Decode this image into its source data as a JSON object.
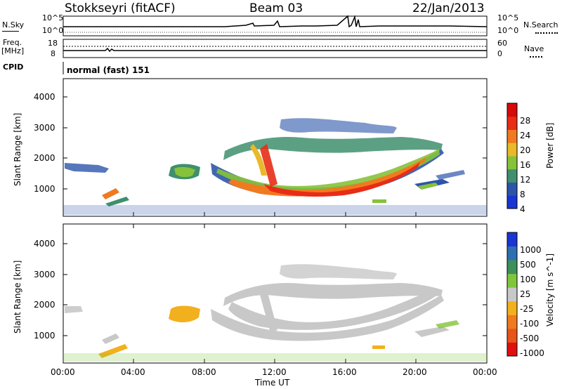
{
  "header": {
    "station": "Stokkseyri (fitACF)",
    "beam": "Beam 03",
    "date": "22/Jan/2013"
  },
  "noise_panel": {
    "left_label": "N.Sky",
    "right_label": "N.Search",
    "y_ticks": [
      "10^5",
      "10^0"
    ]
  },
  "freq_panel": {
    "left_label_1": "Freq.",
    "left_label_2": "[MHz]",
    "y_ticks": [
      "18",
      "8"
    ],
    "right_ticks": [
      "60",
      "0"
    ],
    "right_label": "Nave"
  },
  "cpid_panel": {
    "label": "CPID",
    "mode": "normal (fast) 151"
  },
  "chart_data": [
    {
      "type": "heatmap",
      "title": "",
      "ylabel": "Slant Range [km]",
      "xlabel": "",
      "ylim": [
        180,
        4500
      ],
      "y_ticks": [
        "1000",
        "2000",
        "3000",
        "4000"
      ],
      "colorbar": {
        "label": "Power [dB]",
        "ticks": [
          "4",
          "8",
          "12",
          "16",
          "20",
          "24",
          "28"
        ],
        "colors": [
          "#1a35d4",
          "#2c55aa",
          "#3f8f6f",
          "#86c23a",
          "#e9b92a",
          "#f07a1f",
          "#e82c16",
          "#d60a0a"
        ]
      }
    },
    {
      "type": "heatmap",
      "title": "",
      "ylabel": "Slant Range [km]",
      "xlabel": "Time UT",
      "ylim": [
        180,
        4500
      ],
      "y_ticks": [
        "1000",
        "2000",
        "3000",
        "4000"
      ],
      "x_ticks": [
        "00:00",
        "04:00",
        "08:00",
        "12:00",
        "16:00",
        "20:00",
        "00:00"
      ],
      "colorbar": {
        "label": "Velocity [m s^-1]",
        "ticks": [
          "1000",
          "500",
          "100",
          "25",
          "-25",
          "-100",
          "-500",
          "-1000"
        ],
        "colors": [
          "#1a35d4",
          "#2d6fb0",
          "#3e8f5a",
          "#7fc63c",
          "#c8c8c8",
          "#f2b01e",
          "#f07a1f",
          "#e8541a",
          "#e01010"
        ]
      }
    }
  ]
}
